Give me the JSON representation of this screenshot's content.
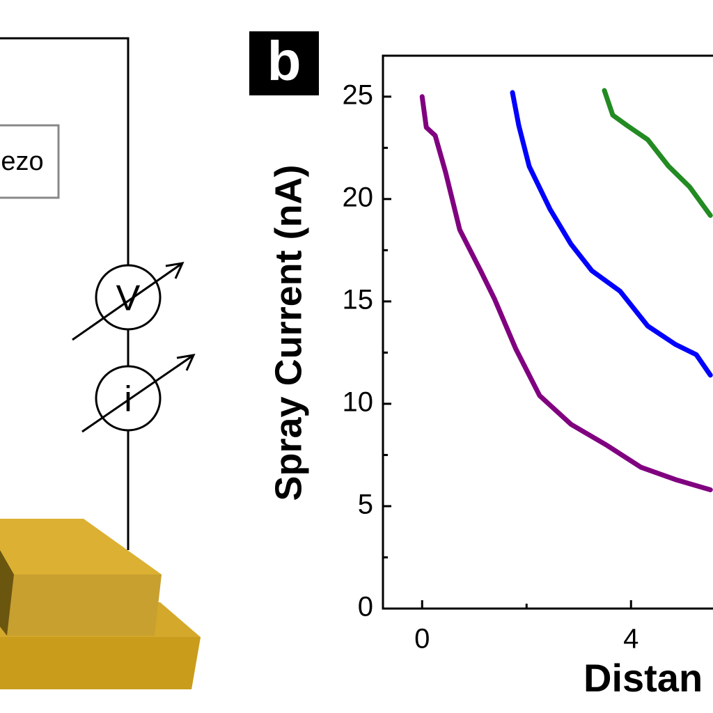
{
  "diagram": {
    "piezo_label": "ezo",
    "meter_labels": [
      "V",
      "i"
    ]
  },
  "chart_data": {
    "type": "line",
    "panel_label": "b",
    "y_label": "Spray Current (nA)",
    "x_label": "Distan",
    "xlim": [
      -0.75,
      5.57
    ],
    "xticks": [
      0,
      4
    ],
    "xminorticks": [
      2
    ],
    "ylim": [
      0,
      27
    ],
    "yticks": [
      0,
      5,
      10,
      15,
      20,
      25
    ],
    "yminorticks": [
      2.5,
      7.5,
      12.5,
      17.5,
      22.5
    ],
    "series": [
      {
        "name": "purple",
        "color": "#800080",
        "x": [
          0,
          0.08,
          0.25,
          0.45,
          0.72,
          1.12,
          1.39,
          1.79,
          2.25,
          2.85,
          3.52,
          4.19,
          4.85,
          5.52
        ],
        "values": [
          25,
          23.5,
          23.1,
          21.3,
          18.5,
          16.5,
          15.1,
          12.7,
          10.4,
          9,
          8,
          6.9,
          6.3,
          5.8
        ]
      },
      {
        "name": "blue",
        "color": "#0000ff",
        "x": [
          1.73,
          1.85,
          2.05,
          2.45,
          2.85,
          3.25,
          3.79,
          4.32,
          4.85,
          5.25,
          5.52
        ],
        "values": [
          25.2,
          23.6,
          21.6,
          19.5,
          17.8,
          16.5,
          15.5,
          13.8,
          12.9,
          12.4,
          11.4
        ]
      },
      {
        "name": "green",
        "color": "#228b22",
        "x": [
          3.49,
          3.65,
          3.92,
          4.32,
          4.72,
          5.12,
          5.52
        ],
        "values": [
          25.3,
          24.1,
          23.6,
          22.9,
          21.6,
          20.6,
          19.2
        ]
      }
    ]
  }
}
